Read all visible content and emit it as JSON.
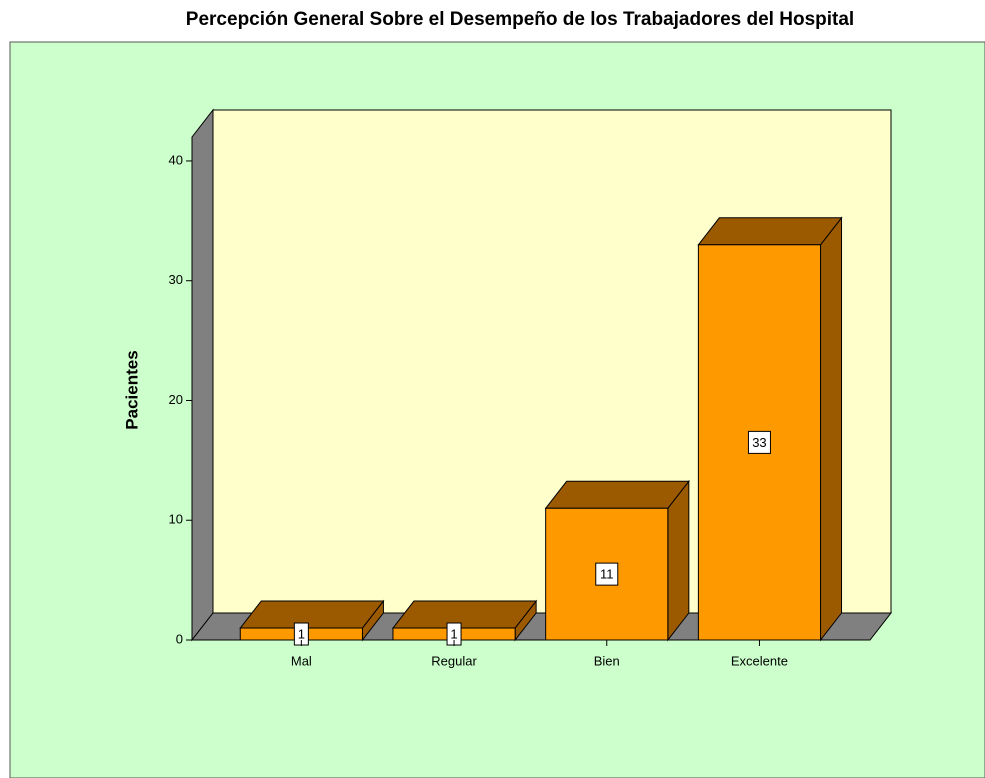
{
  "chart_data": {
    "type": "bar3d",
    "title": "Percepción General Sobre el Desempeño de los Trabajadores del Hospital",
    "y_label": "Pacientes",
    "categories": [
      "Mal",
      "Regular",
      "Bien",
      "Excelente"
    ],
    "values": [
      1,
      1,
      11,
      33
    ],
    "ylim": [
      0,
      42
    ],
    "yticks": [
      0,
      10,
      20,
      30,
      40
    ],
    "color": "#ff9900",
    "shade_color": "#9c5a00",
    "wall_color": "#808080",
    "back_color": "#ffffcc",
    "panel_color": "#ccffcc"
  }
}
